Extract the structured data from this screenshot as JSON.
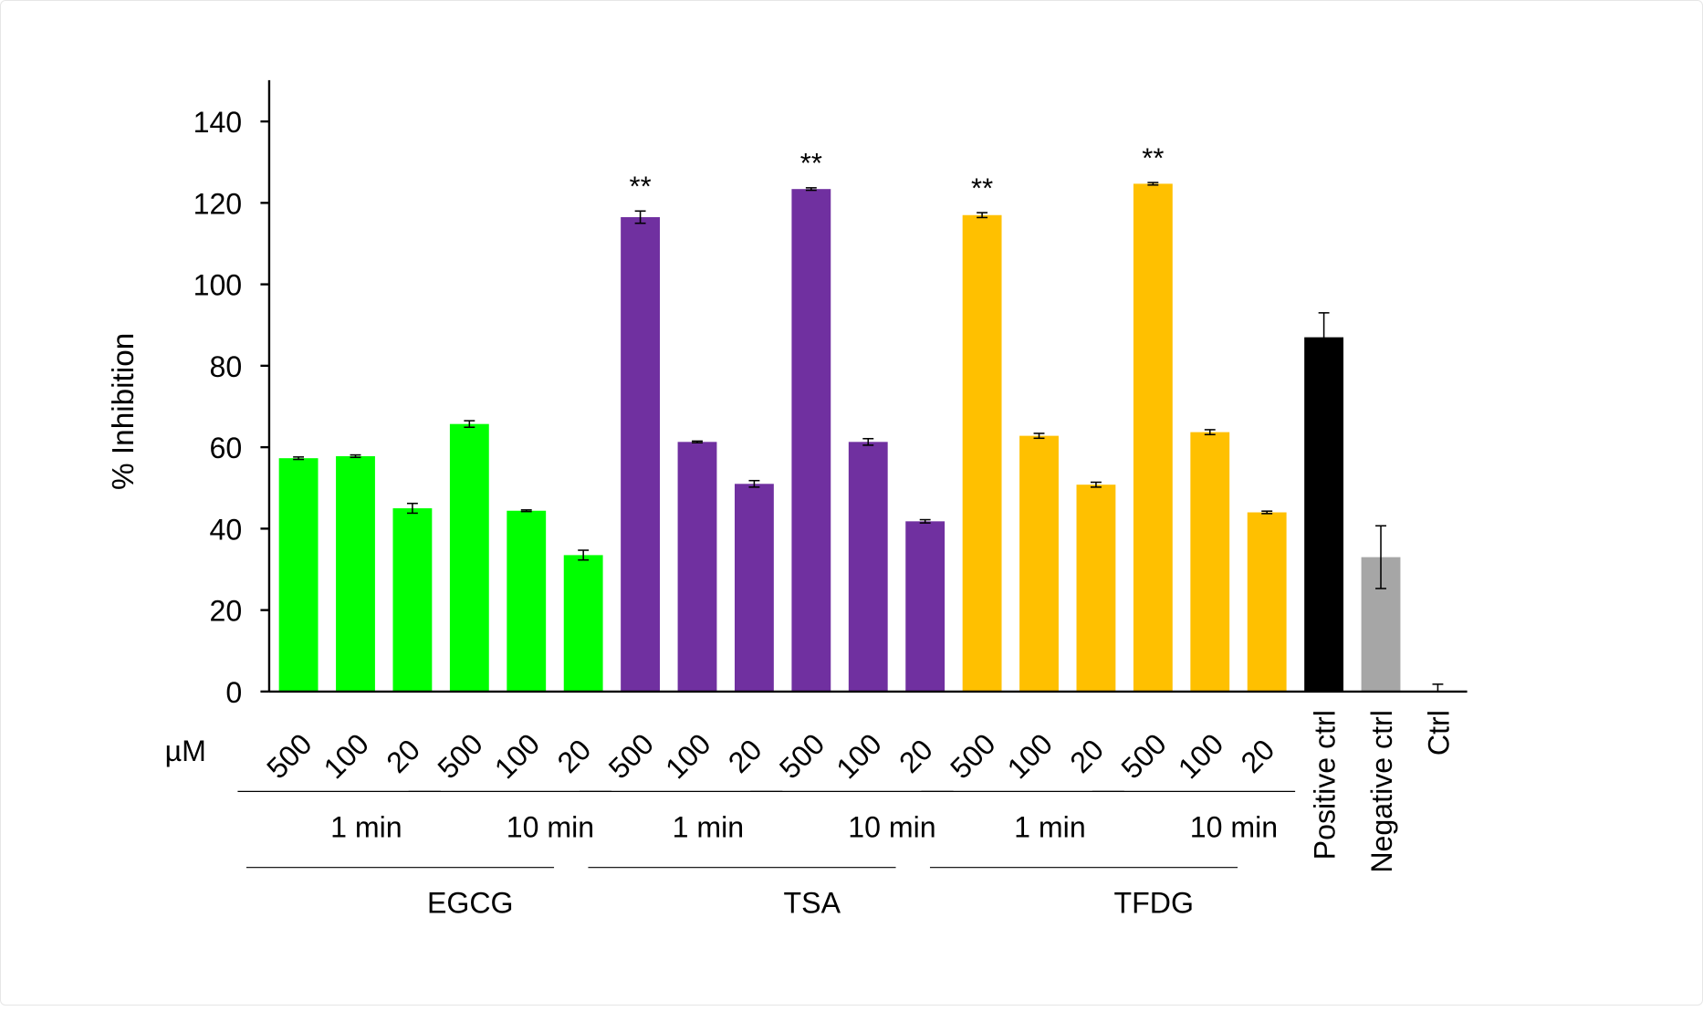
{
  "chart_data": {
    "type": "bar",
    "title": "",
    "xlabel": "",
    "ylabel": "% Inhibition",
    "ylim": [
      0,
      150
    ],
    "yticks": [
      0,
      20,
      40,
      60,
      80,
      100,
      120,
      140
    ],
    "grid": false,
    "legend": "none",
    "unit_label": "µM",
    "categories": [
      "500",
      "100",
      "20",
      "500",
      "100",
      "20",
      "500",
      "100",
      "20",
      "500",
      "100",
      "20",
      "500",
      "100",
      "20",
      "500",
      "100",
      "20",
      "Positive ctrl",
      "Negative ctrl",
      "Ctrl"
    ],
    "values": [
      57.3,
      57.8,
      45.0,
      65.7,
      44.4,
      33.5,
      116.5,
      61.3,
      51.0,
      123.4,
      61.3,
      41.8,
      117.0,
      62.8,
      50.8,
      124.7,
      63.7,
      44.0,
      87.0,
      33.0,
      0
    ],
    "errors": [
      0.3,
      0.3,
      1.2,
      0.8,
      0.2,
      1.2,
      1.5,
      0.2,
      0.8,
      0.3,
      0.8,
      0.4,
      0.6,
      0.6,
      0.6,
      0.3,
      0.6,
      0.3,
      6.0,
      7.7,
      1.8
    ],
    "significance": [
      "",
      "",
      "",
      "",
      "",
      "",
      "**",
      "",
      "",
      "**",
      "",
      "",
      "**",
      "",
      "",
      "**",
      "",
      "",
      "",
      "",
      ""
    ],
    "colors": {
      "EGCG": "#00ff00",
      "TSA": "#7030a0",
      "TFDG": "#ffc000",
      "Positive ctrl": "#000000",
      "Negative ctrl": "#a6a6a6",
      "Ctrl": "#ffffff"
    },
    "bar_groups": [
      "EGCG",
      "EGCG",
      "EGCG",
      "EGCG",
      "EGCG",
      "EGCG",
      "TSA",
      "TSA",
      "TSA",
      "TSA",
      "TSA",
      "TSA",
      "TFDG",
      "TFDG",
      "TFDG",
      "TFDG",
      "TFDG",
      "TFDG",
      "Positive ctrl",
      "Negative ctrl",
      "Ctrl"
    ],
    "time_groups": [
      {
        "label": "1 min",
        "first": 0,
        "last": 2
      },
      {
        "label": "10 min",
        "first": 3,
        "last": 5
      },
      {
        "label": "1 min",
        "first": 6,
        "last": 8
      },
      {
        "label": "10 min",
        "first": 9,
        "last": 11
      },
      {
        "label": "1 min",
        "first": 12,
        "last": 14
      },
      {
        "label": "10 min",
        "first": 15,
        "last": 17
      }
    ],
    "compound_groups": [
      {
        "label": "EGCG",
        "first": 0,
        "last": 5
      },
      {
        "label": "TSA",
        "first": 6,
        "last": 11
      },
      {
        "label": "TFDG",
        "first": 12,
        "last": 17
      }
    ]
  }
}
